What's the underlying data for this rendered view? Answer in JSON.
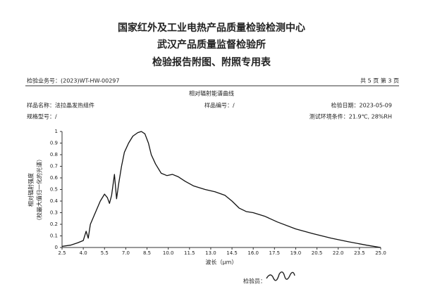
{
  "header": {
    "title_lines": [
      "国家红外及工业电热产品质量检验检测中心",
      "武汉产品质量监督检验所",
      "检验报告附图、附照专用表"
    ]
  },
  "info": {
    "business_no": "检验业务号：(2023)WT-HW-00297",
    "pages": "共 5 页 第 3 页",
    "sample_name": "样品名称：法拉晶发热组件",
    "sample_no": "样品编号：/",
    "test_date": "检验日期：2023-05-09",
    "model": "规格型号：/",
    "environment": "测试环境条件：21.9℃, 28%RH"
  },
  "chart_data": {
    "type": "line",
    "title": "相对辐射能谱曲线",
    "xlabel": "波长（μm）",
    "ylabel_lines": [
      "相对辐射强度",
      "（校最大值归一化的光谱）"
    ],
    "x": [
      2.5,
      3.1,
      3.6,
      4.0,
      4.2,
      4.35,
      4.5,
      4.85,
      5.2,
      5.5,
      5.7,
      5.85,
      6.0,
      6.2,
      6.35,
      6.5,
      6.7,
      6.9,
      7.2,
      7.5,
      7.85,
      8.1,
      8.35,
      8.6,
      8.8,
      9.1,
      9.5,
      9.9,
      10.3,
      10.7,
      11.2,
      11.8,
      12.6,
      13.3,
      14.0,
      14.5,
      15.0,
      15.5,
      16.0,
      16.8,
      17.7,
      19.0,
      20.2,
      21.5,
      22.7,
      24.0,
      25.0
    ],
    "series": [
      {
        "name": "相对辐射强度",
        "color": "#111111",
        "values": [
          0.01,
          0.02,
          0.04,
          0.06,
          0.14,
          0.08,
          0.2,
          0.3,
          0.4,
          0.46,
          0.43,
          0.38,
          0.45,
          0.63,
          0.42,
          0.55,
          0.7,
          0.82,
          0.9,
          0.96,
          0.99,
          1.0,
          0.98,
          0.9,
          0.8,
          0.72,
          0.64,
          0.62,
          0.63,
          0.61,
          0.57,
          0.53,
          0.5,
          0.48,
          0.45,
          0.4,
          0.34,
          0.31,
          0.3,
          0.27,
          0.22,
          0.16,
          0.12,
          0.08,
          0.05,
          0.02,
          0.0
        ]
      }
    ],
    "xlim": [
      2.5,
      25.0
    ],
    "ylim": [
      0,
      1
    ],
    "xticks": [
      2.5,
      {
        "value": 4,
        "label": "4.0"
      },
      5.5,
      {
        "value": 7,
        "label": "7.0"
      },
      8.5,
      {
        "value": 10,
        "label": "10.0"
      },
      11.5,
      {
        "value": 13,
        "label": "13.0"
      },
      14.5,
      {
        "value": 16,
        "label": "16.0"
      },
      17.5,
      {
        "value": 19,
        "label": "19.0"
      },
      20.5,
      {
        "value": 22,
        "label": "22.0"
      },
      23.5,
      {
        "value": 25,
        "label": "25.0"
      }
    ],
    "yticks": [
      0,
      0.1,
      0.2,
      0.3,
      0.4,
      0.5,
      0.6,
      0.7,
      0.8,
      0.9,
      1
    ]
  },
  "footer": {
    "inspector": "检验员："
  }
}
